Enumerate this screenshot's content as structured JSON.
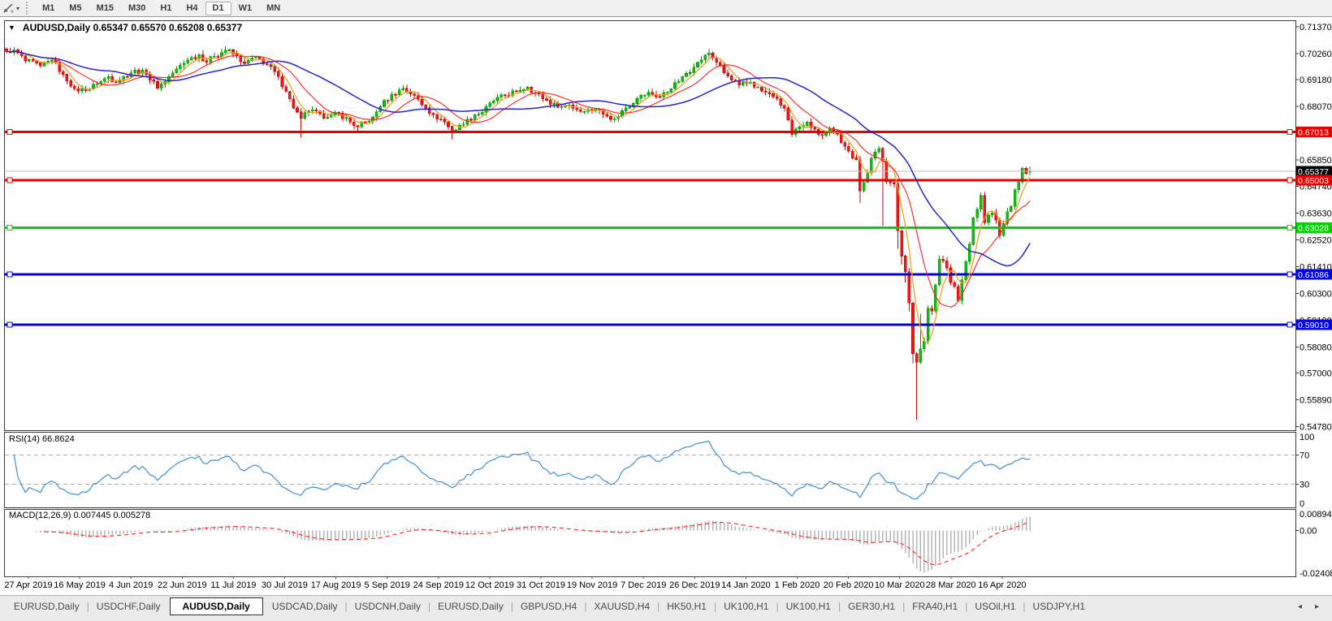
{
  "toolbar": {
    "tool_icon": "crosshair-draw-tool",
    "dropdown_caret": "▾",
    "timeframes": [
      "M1",
      "M5",
      "M15",
      "M30",
      "H1",
      "H4",
      "D1",
      "W1",
      "MN"
    ],
    "active_timeframe": "D1"
  },
  "chart": {
    "dropdown_caret": "▼",
    "title": "AUDUSD,Daily  0.65347 0.65570 0.65208 0.65377",
    "symbol": "AUDUSD",
    "period": "Daily"
  },
  "indicators": {
    "rsi_label": "RSI(14) 66.8624",
    "rsi_axis": [
      "100",
      "70",
      "30",
      "0"
    ],
    "macd_label": "MACD(12,26,9) 0.007445 0.005278",
    "macd_axis": [
      "0.008946",
      "0.00",
      "-0.024088"
    ]
  },
  "bottom_tabs": {
    "items": [
      "EURUSD,Daily",
      "USDCHF,Daily",
      "AUDUSD,Daily",
      "USDCAD,Daily",
      "USDCNH,Daily",
      "EURUSD,Daily",
      "GBPUSD,H4",
      "XAUUSD,H4",
      "HK50,H1",
      "UK100,H1",
      "UK100,H1",
      "GER30,H1",
      "FRA40,H1",
      "USOil,H1",
      "USDJPY,H1"
    ],
    "active_index": 2,
    "scroll_left": "◂",
    "scroll_right": "▸"
  },
  "chart_data": {
    "type": "candlestick",
    "symbol": "AUDUSD",
    "timeframe": "Daily",
    "current_ohlc": {
      "open": 0.65347,
      "high": 0.6557,
      "low": 0.65208,
      "close": 0.65377
    },
    "price_axis": {
      "max": 0.7137,
      "min": 0.5478,
      "ticks": [
        0.7137,
        0.7026,
        0.6918,
        0.6807,
        0.6585,
        0.6474,
        0.6363,
        0.6252,
        0.6141,
        0.603,
        0.5919,
        0.5808,
        0.57,
        0.5589,
        0.5478
      ]
    },
    "x_axis_dates": [
      "27 Apr 2019",
      "16 May 2019",
      "4 Jun 2019",
      "22 Jun 2019",
      "11 Jul 2019",
      "30 Jul 2019",
      "17 Aug 2019",
      "5 Sep 2019",
      "24 Sep 2019",
      "12 Oct 2019",
      "31 Oct 2019",
      "19 Nov 2019",
      "7 Dec 2019",
      "26 Dec 2019",
      "14 Jan 2020",
      "1 Feb 2020",
      "20 Feb 2020",
      "10 Mar 2020",
      "28 Mar 2020",
      "16 Apr 2020"
    ],
    "bar_count": 272,
    "price_waypoints": [
      [
        0,
        0.7035
      ],
      [
        2,
        0.7042
      ],
      [
        5,
        0.6995
      ],
      [
        9,
        0.6975
      ],
      [
        12,
        0.6998
      ],
      [
        15,
        0.694
      ],
      [
        18,
        0.688
      ],
      [
        21,
        0.6872
      ],
      [
        24,
        0.69
      ],
      [
        27,
        0.693
      ],
      [
        29,
        0.6906
      ],
      [
        31,
        0.693
      ],
      [
        34,
        0.6958
      ],
      [
        37,
        0.694
      ],
      [
        40,
        0.6882
      ],
      [
        43,
        0.693
      ],
      [
        45,
        0.6962
      ],
      [
        48,
        0.7
      ],
      [
        51,
        0.7022
      ],
      [
        53,
        0.699
      ],
      [
        55,
        0.7015
      ],
      [
        58,
        0.704
      ],
      [
        60,
        0.7025
      ],
      [
        63,
        0.6985
      ],
      [
        66,
        0.7012
      ],
      [
        69,
        0.698
      ],
      [
        72,
        0.693
      ],
      [
        74,
        0.6868
      ],
      [
        76,
        0.68
      ],
      [
        78,
        0.6758
      ],
      [
        80,
        0.6788
      ],
      [
        83,
        0.6775
      ],
      [
        85,
        0.6762
      ],
      [
        88,
        0.6778
      ],
      [
        91,
        0.6742
      ],
      [
        93,
        0.6722
      ],
      [
        95,
        0.6742
      ],
      [
        97,
        0.6762
      ],
      [
        99,
        0.6806
      ],
      [
        102,
        0.6856
      ],
      [
        105,
        0.6882
      ],
      [
        108,
        0.6852
      ],
      [
        111,
        0.68
      ],
      [
        113,
        0.6772
      ],
      [
        116,
        0.6742
      ],
      [
        118,
        0.6702
      ],
      [
        121,
        0.6732
      ],
      [
        124,
        0.6772
      ],
      [
        126,
        0.6782
      ],
      [
        129,
        0.683
      ],
      [
        132,
        0.6852
      ],
      [
        135,
        0.6872
      ],
      [
        138,
        0.6886
      ],
      [
        140,
        0.6862
      ],
      [
        143,
        0.6832
      ],
      [
        146,
        0.6802
      ],
      [
        149,
        0.6812
      ],
      [
        151,
        0.6792
      ],
      [
        153,
        0.6786
      ],
      [
        156,
        0.6796
      ],
      [
        159,
        0.6766
      ],
      [
        161,
        0.6756
      ],
      [
        164,
        0.68
      ],
      [
        167,
        0.684
      ],
      [
        170,
        0.6864
      ],
      [
        173,
        0.6846
      ],
      [
        176,
        0.688
      ],
      [
        179,
        0.693
      ],
      [
        182,
        0.697
      ],
      [
        184,
        0.7
      ],
      [
        186,
        0.7028
      ],
      [
        188,
        0.699
      ],
      [
        190,
        0.6946
      ],
      [
        192,
        0.6916
      ],
      [
        194,
        0.6896
      ],
      [
        197,
        0.6906
      ],
      [
        200,
        0.687
      ],
      [
        203,
        0.6846
      ],
      [
        206,
        0.68
      ],
      [
        208,
        0.669
      ],
      [
        210,
        0.6722
      ],
      [
        212,
        0.6742
      ],
      [
        214,
        0.6712
      ],
      [
        216,
        0.6686
      ],
      [
        218,
        0.6716
      ],
      [
        220,
        0.6692
      ],
      [
        221,
        0.6656
      ],
      [
        223,
        0.662
      ],
      [
        225,
        0.6585
      ],
      [
        226,
        0.6455
      ],
      [
        228,
        0.653
      ],
      [
        229,
        0.6592
      ],
      [
        231,
        0.6632
      ],
      [
        232,
        0.658
      ],
      [
        233,
        0.6495
      ],
      [
        235,
        0.6485
      ],
      [
        236,
        0.629
      ],
      [
        237,
        0.6185
      ],
      [
        238,
        0.612
      ],
      [
        239,
        0.599
      ],
      [
        240,
        0.578
      ],
      [
        241,
        0.5745
      ],
      [
        242,
        0.58
      ],
      [
        243,
        0.5832
      ],
      [
        244,
        0.5968
      ],
      [
        245,
        0.5956
      ],
      [
        246,
        0.6066
      ],
      [
        247,
        0.6172
      ],
      [
        248,
        0.6166
      ],
      [
        249,
        0.6136
      ],
      [
        250,
        0.6075
      ],
      [
        251,
        0.606
      ],
      [
        252,
        0.6
      ],
      [
        253,
        0.6086
      ],
      [
        254,
        0.6162
      ],
      [
        255,
        0.6234
      ],
      [
        256,
        0.6344
      ],
      [
        257,
        0.638
      ],
      [
        258,
        0.6436
      ],
      [
        259,
        0.6324
      ],
      [
        260,
        0.6356
      ],
      [
        261,
        0.6364
      ],
      [
        262,
        0.6334
      ],
      [
        263,
        0.627
      ],
      [
        264,
        0.632
      ],
      [
        265,
        0.637
      ],
      [
        266,
        0.6392
      ],
      [
        267,
        0.646
      ],
      [
        268,
        0.6492
      ],
      [
        269,
        0.655
      ],
      [
        270,
        0.6528
      ],
      [
        271,
        0.65377
      ]
    ],
    "special_bars": {
      "0": {
        "o": 0.7045
      },
      "2": {
        "h": 0.7052
      },
      "58": {
        "h": 0.7058
      },
      "78": {
        "l": 0.6677
      },
      "93": {
        "l": 0.6705
      },
      "118": {
        "l": 0.667
      },
      "186": {
        "h": 0.7045
      },
      "226": {
        "l": 0.6405
      },
      "232": {
        "l": 0.631
      },
      "236": {
        "l": 0.6215
      },
      "237": {
        "l": 0.615
      },
      "238": {
        "l": 0.6075
      },
      "239": {
        "l": 0.5955
      },
      "240": {
        "l": 0.574
      },
      "241": {
        "l": 0.5506
      },
      "242": {
        "h": 0.5945
      },
      "271": {
        "o": 0.65347,
        "h": 0.6557,
        "l": 0.65208,
        "c": 0.65377
      }
    },
    "horizontal_lines": [
      {
        "price": 0.67013,
        "color": "#e60000",
        "width": 3
      },
      {
        "price": 0.65003,
        "color": "#e60000",
        "width": 3
      },
      {
        "price": 0.63028,
        "color": "#00d300",
        "width": 3
      },
      {
        "price": 0.61086,
        "color": "#0000e0",
        "width": 3
      },
      {
        "price": 0.5901,
        "color": "#0000e0",
        "width": 3
      }
    ],
    "current_price_line": {
      "price": 0.65377,
      "color": "#bdbdbd"
    },
    "price_badges": [
      {
        "price": 0.67013,
        "label": "0.67013",
        "bg": "#e60000",
        "fg": "#ffffff"
      },
      {
        "price": 0.65377,
        "label": "0.65377",
        "bg": "#000000",
        "fg": "#ffffff"
      },
      {
        "price": 0.65003,
        "label": "0.65003",
        "bg": "#e60000",
        "fg": "#ffffff"
      },
      {
        "price": 0.63028,
        "label": "0.63028",
        "bg": "#00d300",
        "fg": "#ffffff"
      },
      {
        "price": 0.61086,
        "label": "0.61086",
        "bg": "#0000e0",
        "fg": "#ffffff"
      },
      {
        "price": 0.5901,
        "label": "0.59010",
        "bg": "#0000e0",
        "fg": "#ffffff"
      }
    ],
    "candle_colors": {
      "up_fill": "#12bb12",
      "up_stroke": "#089a08",
      "down_fill": "#f21717",
      "down_stroke": "#c90707"
    },
    "moving_averages": [
      {
        "period": 5,
        "color": "#f2a019",
        "width": 1.3
      },
      {
        "period": 12,
        "color": "#ff1f1f",
        "width": 1.1
      },
      {
        "period": 30,
        "color": "#2525cc",
        "width": 1.5
      }
    ],
    "rsi": {
      "period": 14,
      "current": 66.8624,
      "range": [
        0,
        100
      ],
      "levels": [
        70,
        30
      ],
      "color": "#3f8fd2",
      "level_color": "#aaaaaa"
    },
    "macd": {
      "fast": 12,
      "slow": 26,
      "signal": 9,
      "current": 0.007445,
      "current_signal": 0.005278,
      "range": [
        -0.024088,
        0.008946
      ],
      "hist_color": "#b5b5b5",
      "signal_color": "#ff1f1f"
    }
  }
}
